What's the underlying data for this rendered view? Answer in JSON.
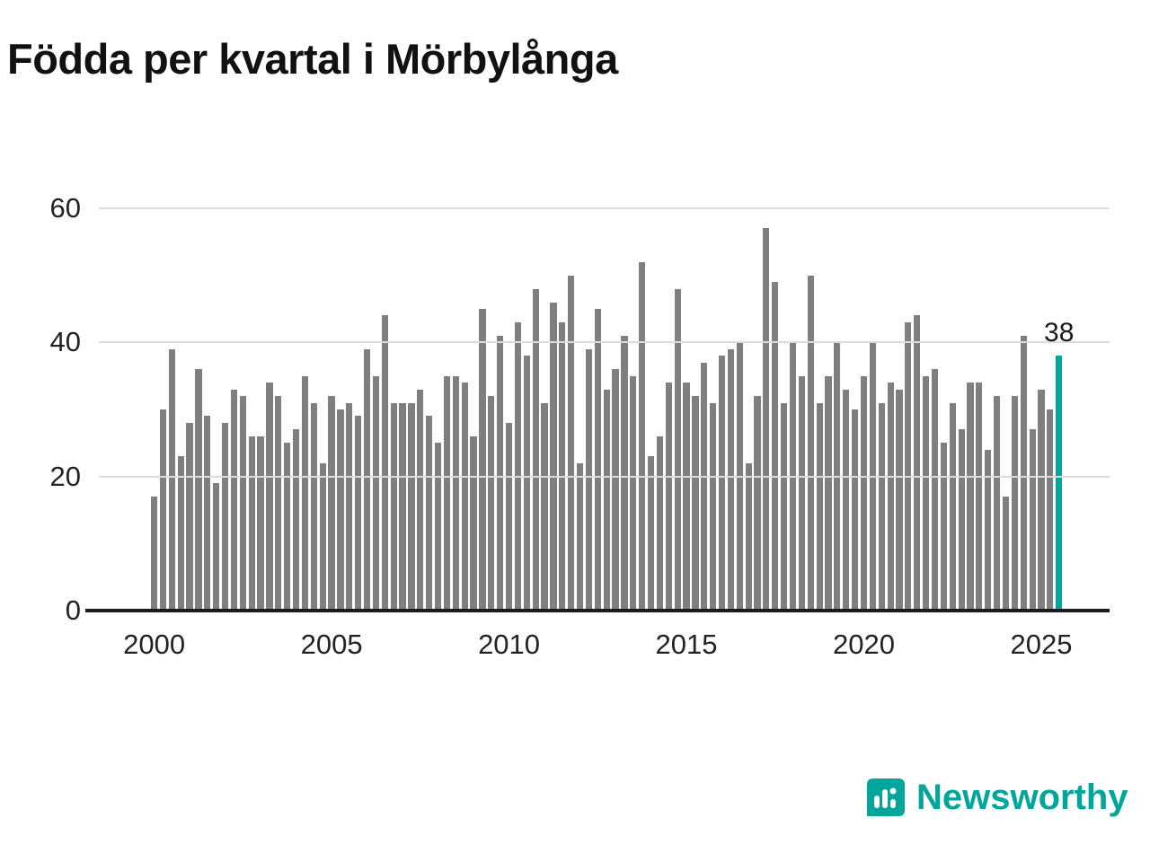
{
  "title": "Födda per kvartal i Mörbylånga",
  "chart_data": {
    "type": "bar",
    "title": "Födda per kvartal i Mörbylånga",
    "frequency": "quarterly",
    "x_start": "2000 Q1",
    "x_end": "2025 Q3",
    "x_start_year": 2000,
    "values": [
      17,
      30,
      39,
      23,
      28,
      36,
      29,
      19,
      28,
      33,
      32,
      26,
      26,
      34,
      32,
      25,
      27,
      35,
      31,
      22,
      32,
      30,
      31,
      29,
      39,
      35,
      44,
      31,
      31,
      31,
      33,
      29,
      25,
      35,
      35,
      34,
      26,
      45,
      32,
      41,
      28,
      43,
      38,
      48,
      31,
      46,
      43,
      50,
      22,
      39,
      45,
      33,
      36,
      41,
      35,
      52,
      23,
      26,
      34,
      48,
      34,
      32,
      37,
      31,
      38,
      39,
      40,
      22,
      32,
      57,
      49,
      31,
      40,
      35,
      50,
      31,
      35,
      40,
      33,
      30,
      35,
      40,
      31,
      34,
      33,
      43,
      44,
      35,
      36,
      25,
      31,
      27,
      34,
      34,
      24,
      32,
      17,
      32,
      41,
      27,
      33,
      30,
      38
    ],
    "highlight_last": true,
    "last_value_label": "38",
    "ylim": [
      0,
      60
    ],
    "yticks": [
      0,
      20,
      40,
      60
    ],
    "xticks": [
      2000,
      2005,
      2010,
      2015,
      2020,
      2025
    ],
    "grid": "horizontal",
    "legend": "none"
  },
  "colors": {
    "bar": "#7f7f7f",
    "accent": "#00a69a",
    "grid": "#dcdcdc",
    "axis": "#1a1a1a",
    "text": "#222222"
  },
  "footer": {
    "brand": "Newsworthy"
  }
}
